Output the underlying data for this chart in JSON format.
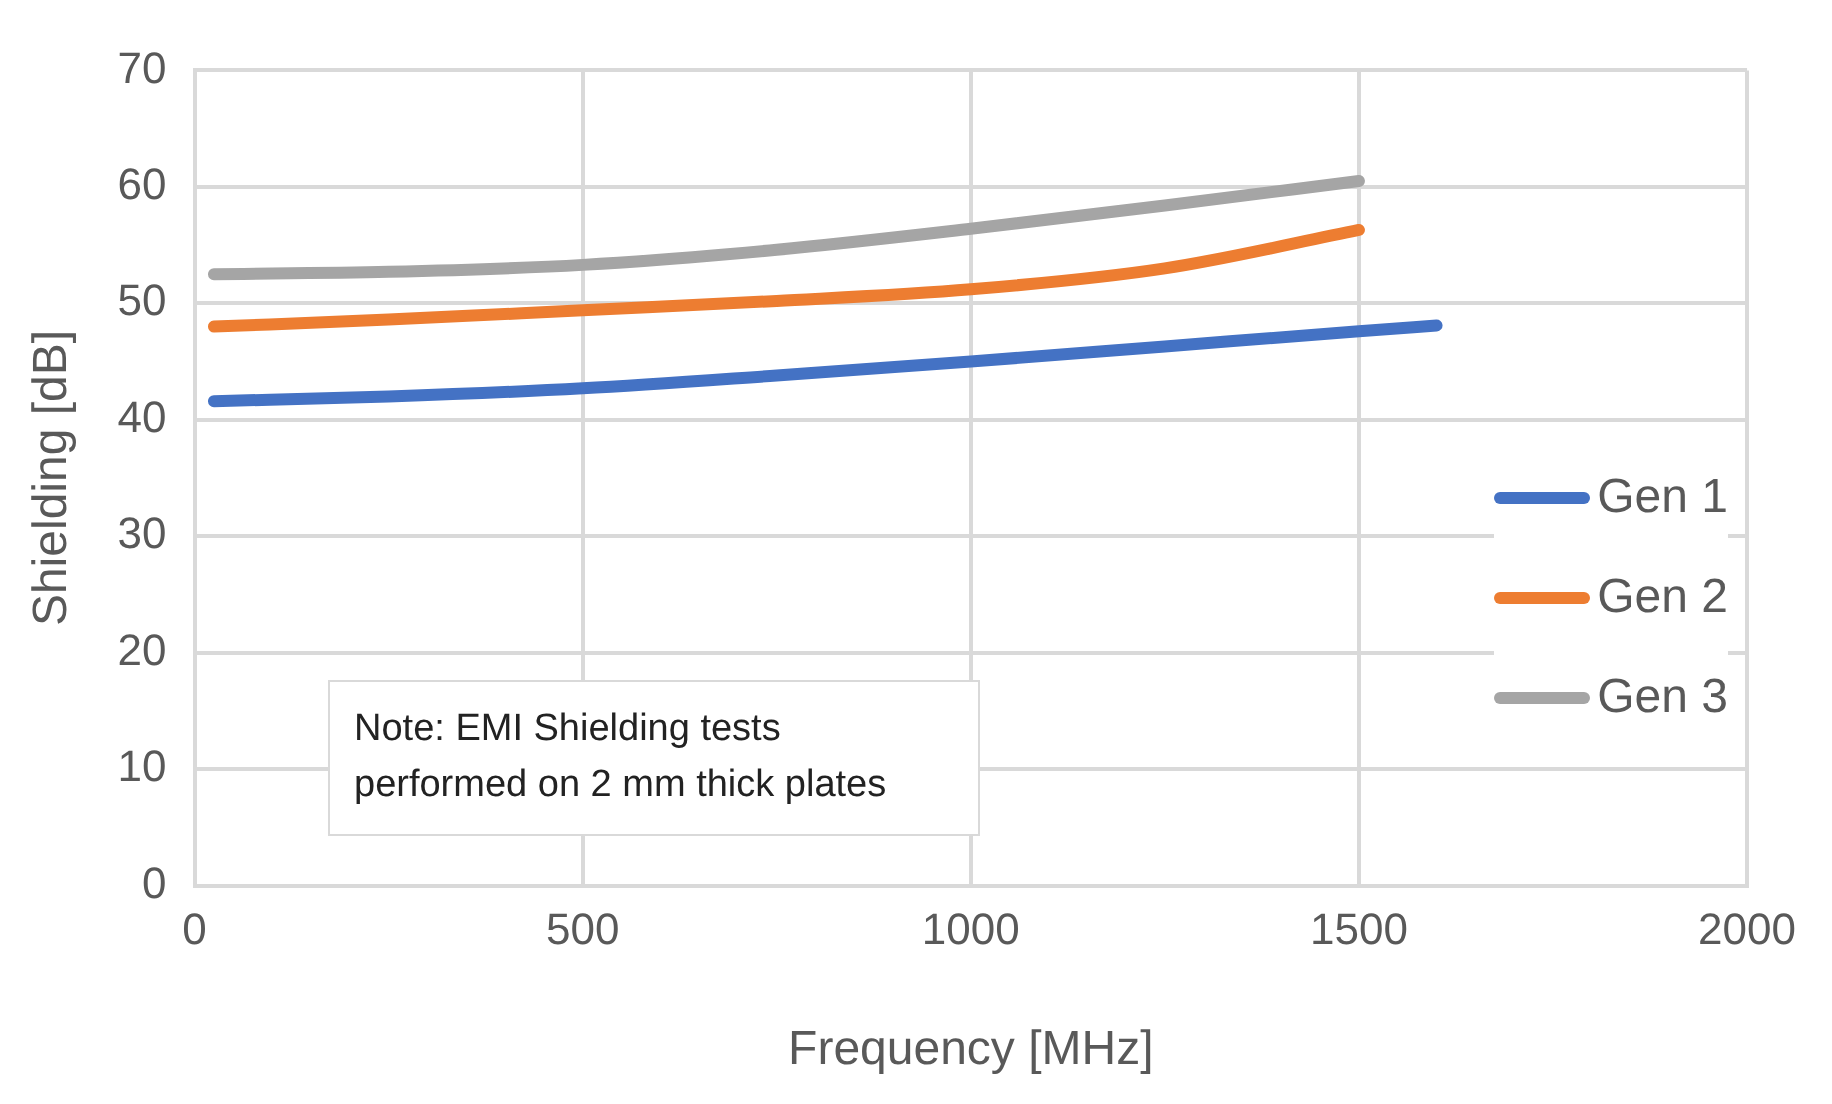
{
  "chart_data": {
    "type": "line",
    "xlabel": "Frequency [MHz]",
    "ylabel": "Shielding [dB]",
    "xlim": [
      0,
      2000
    ],
    "xticks": [
      0,
      500,
      1000,
      1500,
      2000
    ],
    "ylim": [
      0,
      70
    ],
    "yticks": [
      0,
      10,
      20,
      30,
      40,
      50,
      60,
      70
    ],
    "grid": true,
    "legend": "right",
    "marker": "none",
    "line_style": "solid",
    "annotations": [
      "Note: EMI Shielding tests performed on 2 mm thick plates"
    ],
    "series": [
      {
        "name": "Gen 1",
        "color": "#4472c4",
        "x": [
          25,
          250,
          500,
          750,
          1000,
          1250,
          1500,
          1600
        ],
        "values": [
          41.6,
          42,
          42.7,
          43.8,
          45,
          46.3,
          47.6,
          48.1
        ]
      },
      {
        "name": "Gen 2",
        "color": "#ed7d31",
        "x": [
          25,
          250,
          500,
          750,
          1000,
          1250,
          1500
        ],
        "values": [
          48,
          48.6,
          49.4,
          50.2,
          51.2,
          53,
          56.3
        ]
      },
      {
        "name": "Gen 3",
        "color": "#a5a5a5",
        "x": [
          25,
          250,
          500,
          750,
          1000,
          1250,
          1500
        ],
        "values": [
          52.5,
          52.7,
          53.3,
          54.6,
          56.4,
          58.4,
          60.5
        ]
      }
    ]
  }
}
